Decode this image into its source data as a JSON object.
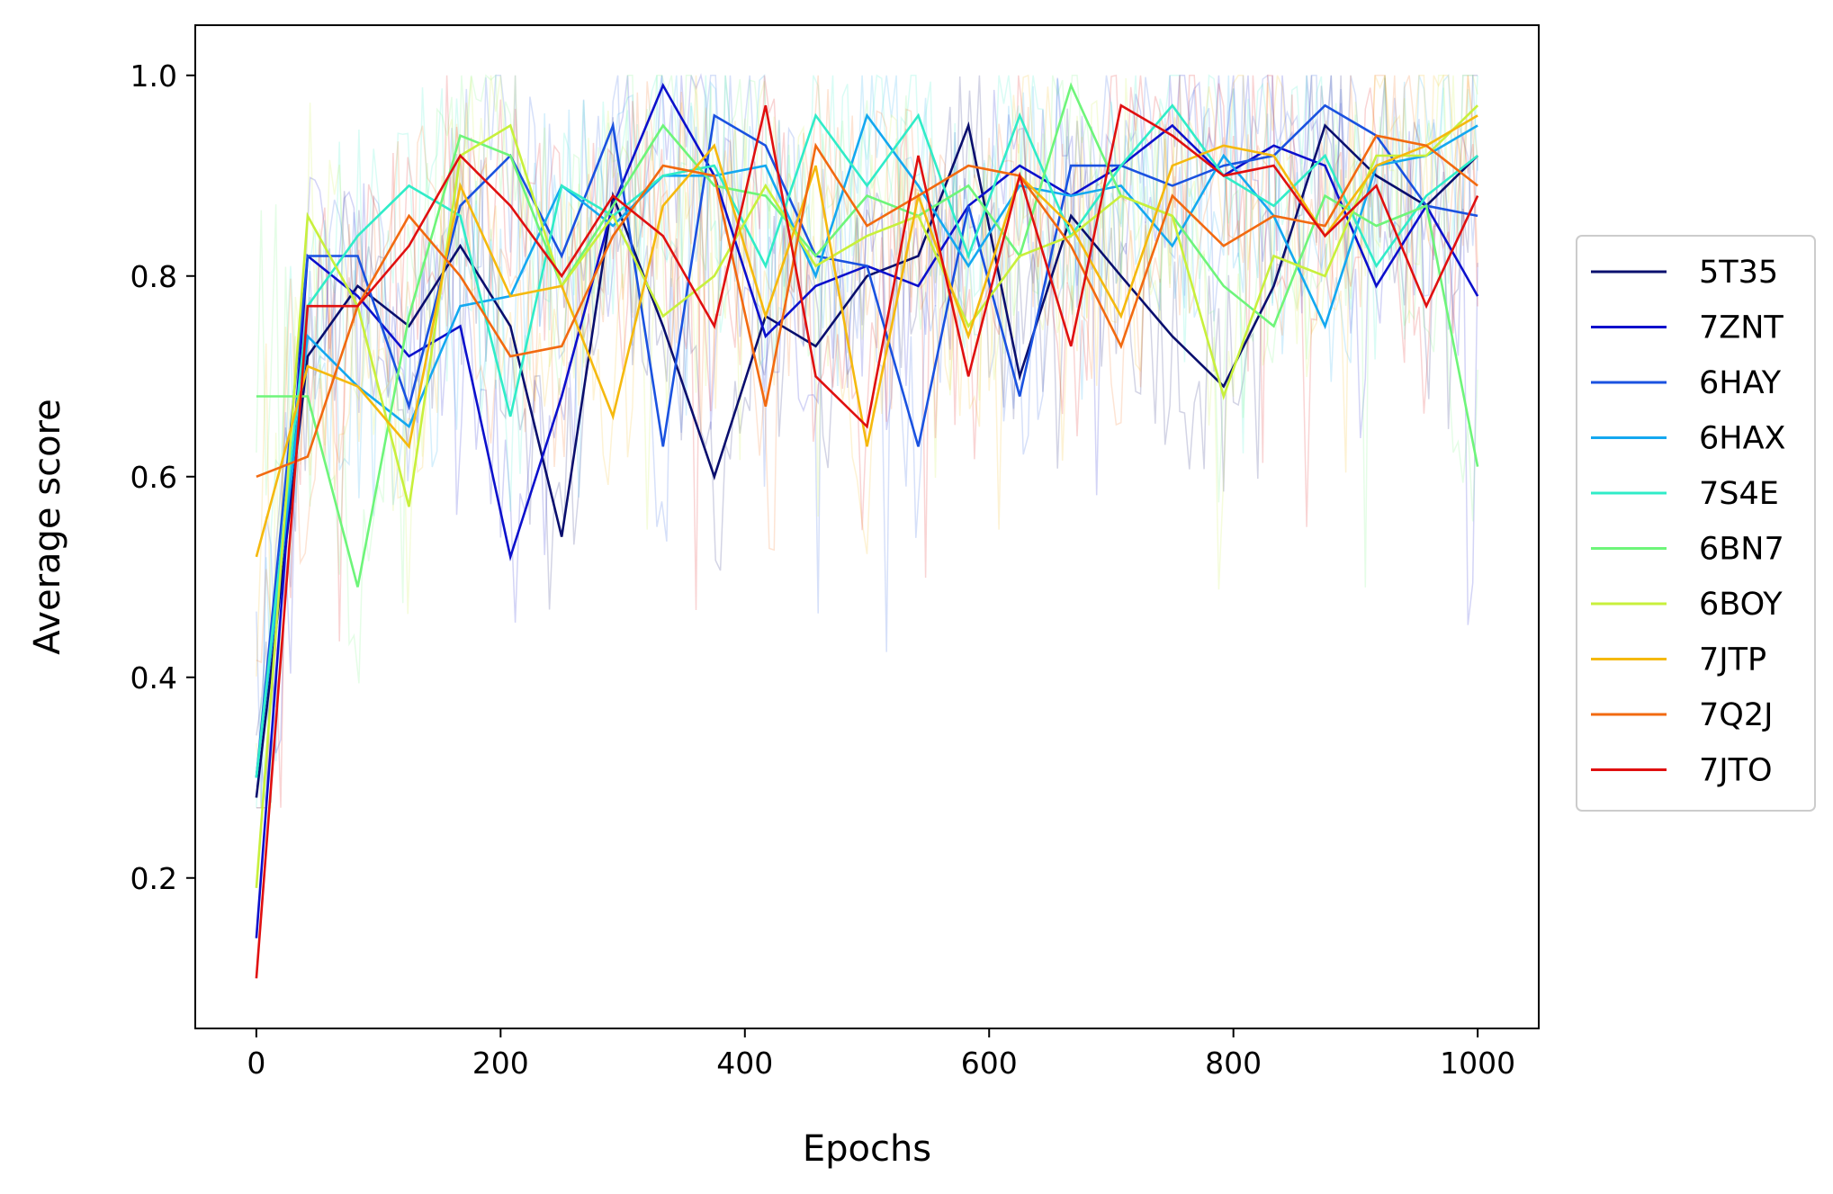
{
  "chart_data": {
    "type": "line",
    "xlabel": "Epochs",
    "ylabel": "Average score",
    "xlim": [
      -50,
      1050
    ],
    "ylim": [
      0.05,
      1.05
    ],
    "x_ticks": [
      0,
      200,
      400,
      600,
      800,
      1000
    ],
    "y_ticks": [
      0.2,
      0.4,
      0.6,
      0.8,
      1.0
    ],
    "y_tick_labels": [
      "0.2",
      "0.4",
      "0.6",
      "0.8",
      "1.0"
    ],
    "grid": false,
    "legend_position": "right",
    "x": [
      0,
      42,
      83,
      125,
      167,
      208,
      250,
      292,
      333,
      375,
      417,
      458,
      500,
      542,
      583,
      625,
      667,
      708,
      750,
      792,
      833,
      875,
      917,
      958,
      1000
    ],
    "series": [
      {
        "name": "5T35",
        "color": "#0a0f6e",
        "values": [
          0.28,
          0.72,
          0.79,
          0.75,
          0.83,
          0.75,
          0.54,
          0.88,
          0.75,
          0.6,
          0.76,
          0.73,
          0.8,
          0.82,
          0.95,
          0.7,
          0.86,
          0.8,
          0.74,
          0.69,
          0.79,
          0.95,
          0.9,
          0.87,
          0.92
        ]
      },
      {
        "name": "7ZNT",
        "color": "#0c10cc",
        "values": [
          0.14,
          0.82,
          0.78,
          0.72,
          0.75,
          0.52,
          0.68,
          0.87,
          0.99,
          0.9,
          0.74,
          0.79,
          0.81,
          0.79,
          0.87,
          0.91,
          0.88,
          0.91,
          0.95,
          0.9,
          0.93,
          0.91,
          0.79,
          0.87,
          0.78
        ]
      },
      {
        "name": "6HAY",
        "color": "#1a52e0",
        "values": [
          0.3,
          0.82,
          0.82,
          0.67,
          0.87,
          0.92,
          0.82,
          0.95,
          0.63,
          0.96,
          0.93,
          0.82,
          0.81,
          0.63,
          0.87,
          0.68,
          0.91,
          0.91,
          0.89,
          0.91,
          0.92,
          0.97,
          0.94,
          0.87,
          0.86
        ]
      },
      {
        "name": "6HAX",
        "color": "#14a8f0",
        "values": [
          0.3,
          0.74,
          0.69,
          0.65,
          0.77,
          0.78,
          0.89,
          0.85,
          0.9,
          0.9,
          0.91,
          0.8,
          0.96,
          0.89,
          0.81,
          0.89,
          0.88,
          0.89,
          0.83,
          0.92,
          0.86,
          0.75,
          0.91,
          0.92,
          0.95
        ]
      },
      {
        "name": "7S4E",
        "color": "#30ecc8",
        "values": [
          0.3,
          0.77,
          0.84,
          0.89,
          0.86,
          0.66,
          0.89,
          0.86,
          0.9,
          0.91,
          0.81,
          0.96,
          0.89,
          0.96,
          0.82,
          0.96,
          0.84,
          0.91,
          0.97,
          0.9,
          0.87,
          0.92,
          0.81,
          0.88,
          0.92
        ]
      },
      {
        "name": "6BN7",
        "color": "#6ef57a",
        "values": [
          0.68,
          0.68,
          0.49,
          0.76,
          0.94,
          0.92,
          0.79,
          0.87,
          0.95,
          0.89,
          0.88,
          0.82,
          0.88,
          0.86,
          0.89,
          0.82,
          0.99,
          0.88,
          0.86,
          0.79,
          0.75,
          0.88,
          0.85,
          0.87,
          0.61
        ]
      },
      {
        "name": "6BOY",
        "color": "#c8f03c",
        "values": [
          0.19,
          0.86,
          0.77,
          0.57,
          0.92,
          0.95,
          0.79,
          0.86,
          0.76,
          0.8,
          0.89,
          0.81,
          0.84,
          0.86,
          0.75,
          0.82,
          0.84,
          0.88,
          0.86,
          0.68,
          0.82,
          0.8,
          0.92,
          0.92,
          0.97
        ]
      },
      {
        "name": "7JTP",
        "color": "#f5b90e",
        "values": [
          0.52,
          0.71,
          0.69,
          0.63,
          0.89,
          0.78,
          0.79,
          0.66,
          0.87,
          0.93,
          0.76,
          0.91,
          0.63,
          0.88,
          0.74,
          0.9,
          0.85,
          0.76,
          0.91,
          0.93,
          0.92,
          0.84,
          0.91,
          0.93,
          0.96
        ]
      },
      {
        "name": "7Q2J",
        "color": "#f26a10",
        "values": [
          0.6,
          0.62,
          0.77,
          0.86,
          0.8,
          0.72,
          0.73,
          0.84,
          0.91,
          0.9,
          0.67,
          0.93,
          0.85,
          0.88,
          0.91,
          0.9,
          0.83,
          0.73,
          0.88,
          0.83,
          0.86,
          0.85,
          0.94,
          0.93,
          0.89
        ]
      },
      {
        "name": "7JTO",
        "color": "#e01010",
        "values": [
          0.1,
          0.77,
          0.77,
          0.83,
          0.92,
          0.87,
          0.8,
          0.88,
          0.84,
          0.75,
          0.97,
          0.7,
          0.65,
          0.92,
          0.7,
          0.9,
          0.73,
          0.97,
          0.94,
          0.9,
          0.91,
          0.84,
          0.89,
          0.77,
          0.88
        ]
      }
    ]
  }
}
